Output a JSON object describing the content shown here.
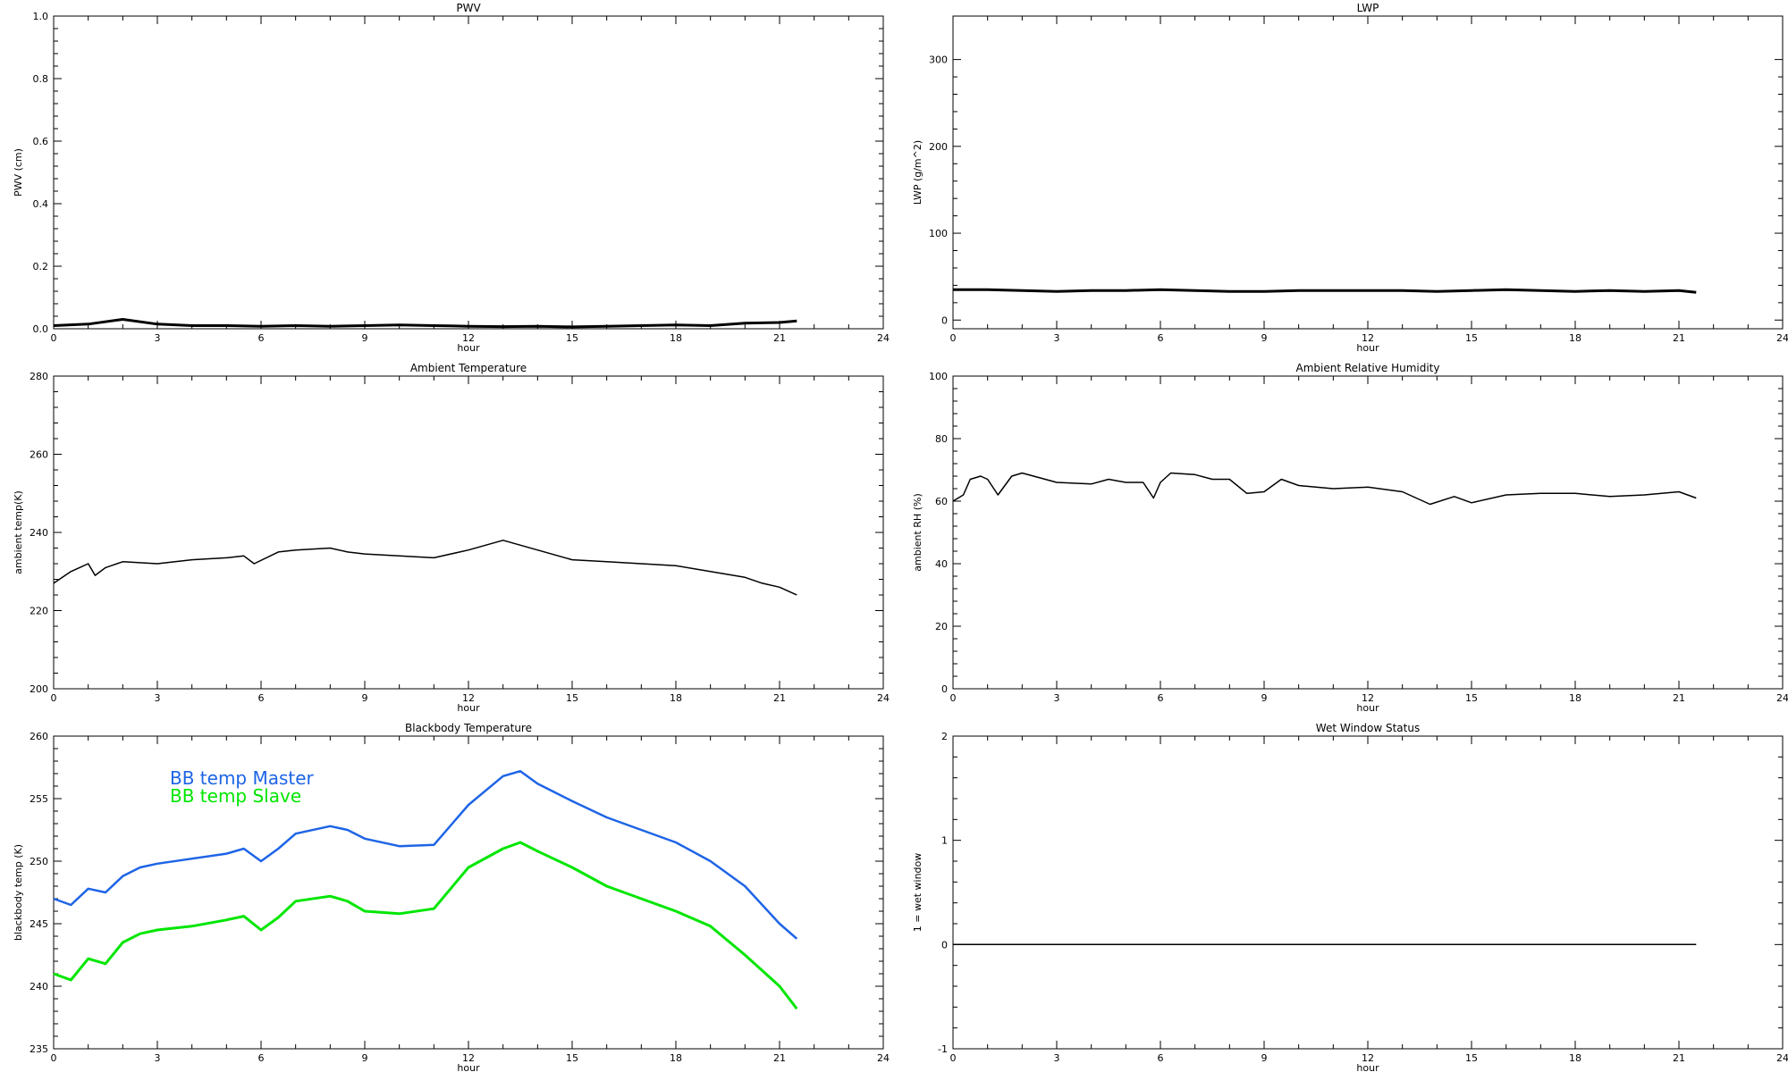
{
  "chart_data": [
    {
      "type": "line",
      "title": "PWV",
      "xlabel": "hour",
      "ylabel": "PWV (cm)",
      "xlim": [
        0,
        24
      ],
      "ylim": [
        0,
        1.0
      ],
      "xticks": [
        "0",
        "3",
        "6",
        "9",
        "12",
        "15",
        "18",
        "21",
        "24"
      ],
      "yticks": [
        "0.0",
        "0.2",
        "0.4",
        "0.6",
        "0.8",
        "1.0"
      ],
      "x": [
        0,
        1,
        2,
        3,
        4,
        5,
        6,
        7,
        8,
        9,
        10,
        11,
        12,
        13,
        14,
        15,
        16,
        17,
        18,
        19,
        20,
        21,
        21.5
      ],
      "series": [
        {
          "color": "#000000",
          "linewidth": 3,
          "values": [
            0.01,
            0.015,
            0.03,
            0.015,
            0.01,
            0.01,
            0.008,
            0.01,
            0.008,
            0.01,
            0.012,
            0.01,
            0.008,
            0.007,
            0.008,
            0.006,
            0.008,
            0.01,
            0.012,
            0.01,
            0.018,
            0.02,
            0.025
          ]
        }
      ]
    },
    {
      "type": "line",
      "title": "LWP",
      "xlabel": "hour",
      "ylabel": "LWP (g/m^2)",
      "xlim": [
        0,
        24
      ],
      "ylim": [
        -10,
        350
      ],
      "xticks": [
        "0",
        "3",
        "6",
        "9",
        "12",
        "15",
        "18",
        "21",
        "24"
      ],
      "yticks": [
        "0",
        "100",
        "200",
        "300"
      ],
      "yticks_values": [
        0,
        100,
        200,
        300
      ],
      "x": [
        0,
        1,
        2,
        3,
        4,
        5,
        6,
        7,
        8,
        9,
        10,
        11,
        12,
        13,
        14,
        15,
        16,
        17,
        18,
        19,
        20,
        21,
        21.5
      ],
      "series": [
        {
          "color": "#000000",
          "linewidth": 3,
          "values": [
            35,
            35,
            34,
            33,
            34,
            34,
            35,
            34,
            33,
            33,
            34,
            34,
            34,
            34,
            33,
            34,
            35,
            34,
            33,
            34,
            33,
            34,
            32
          ]
        }
      ]
    },
    {
      "type": "line",
      "title": "Ambient Temperature",
      "xlabel": "hour",
      "ylabel": "ambient temp(K)",
      "xlim": [
        0,
        24
      ],
      "ylim": [
        200,
        280
      ],
      "xticks": [
        "0",
        "3",
        "6",
        "9",
        "12",
        "15",
        "18",
        "21",
        "24"
      ],
      "yticks": [
        "200",
        "220",
        "240",
        "260",
        "280"
      ],
      "yticks_values": [
        200,
        220,
        240,
        260,
        280
      ],
      "x": [
        0,
        0.5,
        1.0,
        1.2,
        1.5,
        2.0,
        3.0,
        4.0,
        5.0,
        5.5,
        5.8,
        6.5,
        7.0,
        8.0,
        8.5,
        9.0,
        10.0,
        11.0,
        12.0,
        13.0,
        14.0,
        15.0,
        16.0,
        17.0,
        18.0,
        19.0,
        20.0,
        20.5,
        21.0,
        21.5
      ],
      "series": [
        {
          "color": "#000000",
          "linewidth": 1.5,
          "values": [
            227,
            230,
            232,
            229,
            231,
            232.5,
            232,
            233,
            233.5,
            234,
            232,
            235,
            235.5,
            236,
            235,
            234.5,
            234,
            233.5,
            235.5,
            238,
            235.5,
            233,
            232.5,
            232,
            231.5,
            230,
            228.5,
            227,
            226,
            224
          ]
        }
      ]
    },
    {
      "type": "line",
      "title": "Ambient Relative Humidity",
      "xlabel": "hour",
      "ylabel": "ambient RH (%)",
      "xlim": [
        0,
        24
      ],
      "ylim": [
        0,
        100
      ],
      "xticks": [
        "0",
        "3",
        "6",
        "9",
        "12",
        "15",
        "18",
        "21",
        "24"
      ],
      "yticks": [
        "0",
        "20",
        "40",
        "60",
        "80",
        "100"
      ],
      "yticks_values": [
        0,
        20,
        40,
        60,
        80,
        100
      ],
      "x": [
        0,
        0.3,
        0.5,
        0.8,
        1.0,
        1.3,
        1.7,
        2.0,
        3.0,
        4.0,
        4.5,
        5.0,
        5.5,
        5.8,
        6.0,
        6.3,
        7.0,
        7.5,
        8.0,
        8.5,
        9.0,
        9.5,
        10.0,
        11.0,
        12.0,
        13.0,
        13.8,
        14.5,
        15.0,
        16.0,
        17.0,
        18.0,
        19.0,
        20.0,
        20.5,
        21.0,
        21.5
      ],
      "series": [
        {
          "color": "#000000",
          "linewidth": 1.5,
          "values": [
            60,
            62,
            67,
            68,
            67,
            62,
            68,
            69,
            66,
            65.5,
            67,
            66,
            66,
            61,
            66,
            69,
            68.5,
            67,
            67,
            62.5,
            63,
            67,
            65,
            64,
            64.5,
            63,
            59,
            61.5,
            59.5,
            62,
            62.5,
            62.5,
            61.5,
            62,
            62.5,
            63,
            61
          ]
        }
      ]
    },
    {
      "type": "line",
      "title": "Blackbody Temperature",
      "xlabel": "hour",
      "ylabel": "blackbody temp (K)",
      "xlim": [
        0,
        24
      ],
      "ylim": [
        235,
        260
      ],
      "xticks": [
        "0",
        "3",
        "6",
        "9",
        "12",
        "15",
        "18",
        "21",
        "24"
      ],
      "yticks": [
        "235",
        "240",
        "245",
        "250",
        "255",
        "260"
      ],
      "yticks_values": [
        235,
        240,
        245,
        250,
        255,
        260
      ],
      "x": [
        0,
        0.5,
        1.0,
        1.5,
        2.0,
        2.5,
        3.0,
        4.0,
        5.0,
        5.5,
        6.0,
        6.5,
        7.0,
        8.0,
        8.5,
        9.0,
        10.0,
        11.0,
        12.0,
        13.0,
        13.5,
        14.0,
        15.0,
        16.0,
        17.0,
        18.0,
        19.0,
        20.0,
        21.0,
        21.5
      ],
      "series": [
        {
          "name": "BB temp Master",
          "color": "#1e64e6",
          "linewidth": 2.5,
          "values": [
            247,
            246.5,
            247.8,
            247.5,
            248.8,
            249.5,
            249.8,
            250.2,
            250.6,
            251,
            250,
            251,
            252.2,
            252.8,
            252.5,
            251.8,
            251.2,
            251.3,
            254.5,
            256.8,
            257.2,
            256.2,
            254.8,
            253.5,
            252.5,
            251.5,
            250,
            248,
            245,
            243.8
          ]
        },
        {
          "name": "BB temp Slave",
          "color": "#00e600",
          "linewidth": 3,
          "values": [
            241,
            240.5,
            242.2,
            241.8,
            243.5,
            244.2,
            244.5,
            244.8,
            245.3,
            245.6,
            244.5,
            245.5,
            246.8,
            247.2,
            246.8,
            246,
            245.8,
            246.2,
            249.5,
            251,
            251.5,
            250.8,
            249.5,
            248,
            247,
            246,
            244.8,
            242.5,
            240,
            238.2
          ]
        }
      ],
      "legend": "upper-left"
    },
    {
      "type": "line",
      "title": "Wet Window Status",
      "xlabel": "hour",
      "ylabel": "1 = wet window",
      "xlim": [
        0,
        24
      ],
      "ylim": [
        -1,
        2
      ],
      "xticks": [
        "0",
        "3",
        "6",
        "9",
        "12",
        "15",
        "18",
        "21",
        "24"
      ],
      "yticks": [
        "-1",
        "0",
        "1",
        "2"
      ],
      "yticks_values": [
        -1,
        0,
        1,
        2
      ],
      "x": [
        0,
        21.5
      ],
      "series": [
        {
          "color": "#000000",
          "linewidth": 1.5,
          "values": [
            0,
            0
          ]
        }
      ]
    }
  ]
}
